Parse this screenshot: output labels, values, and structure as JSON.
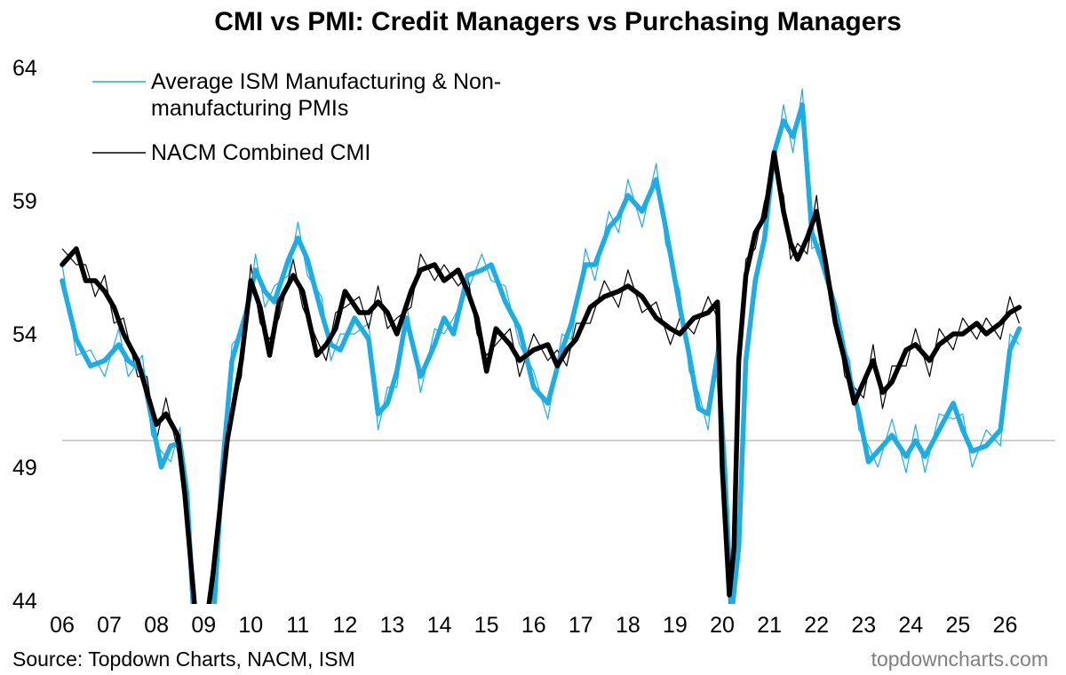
{
  "chart_data": {
    "type": "line",
    "title": "CMI vs PMI: Credit Managers vs Purchasing Managers",
    "xlabel": "",
    "ylabel": "",
    "x_tick_labels": [
      "06",
      "07",
      "08",
      "09",
      "10",
      "11",
      "12",
      "13",
      "14",
      "15",
      "16",
      "17",
      "18",
      "19",
      "20",
      "21",
      "22",
      "23",
      "24",
      "25",
      "26"
    ],
    "y_ticks": [
      44,
      49,
      54,
      59,
      64
    ],
    "ylim": [
      44,
      64
    ],
    "xlim": [
      2006.0,
      2026.5
    ],
    "reference_line": 50,
    "grid": false,
    "legend_position": "top-left",
    "source": "Source: Topdown Charts, NACM, ISM",
    "watermark": "topdowncharts.com",
    "series": [
      {
        "name": "Average ISM Manufacturing & Non-manufacturing PMIs",
        "color": "#1CADE4",
        "x": [
          2006.0,
          2006.3,
          2006.6,
          2006.9,
          2007.2,
          2007.4,
          2007.7,
          2007.9,
          2008.1,
          2008.3,
          2008.5,
          2008.65,
          2008.8,
          2008.9,
          2009.2,
          2009.4,
          2009.6,
          2009.9,
          2010.1,
          2010.3,
          2010.5,
          2010.8,
          2011.0,
          2011.2,
          2011.5,
          2011.7,
          2011.9,
          2012.2,
          2012.5,
          2012.7,
          2012.9,
          2013.1,
          2013.3,
          2013.6,
          2013.9,
          2014.1,
          2014.3,
          2014.6,
          2014.9,
          2015.1,
          2015.4,
          2015.7,
          2016.0,
          2016.3,
          2016.6,
          2016.8,
          2017.1,
          2017.3,
          2017.6,
          2017.8,
          2018.0,
          2018.3,
          2018.6,
          2018.8,
          2019.1,
          2019.3,
          2019.5,
          2019.7,
          2019.9,
          2020.05,
          2020.2,
          2020.35,
          2020.5,
          2020.7,
          2020.9,
          2021.1,
          2021.3,
          2021.5,
          2021.7,
          2021.9,
          2022.1,
          2022.4,
          2022.7,
          2022.9,
          2023.1,
          2023.3,
          2023.6,
          2023.9,
          2024.1,
          2024.3,
          2024.6,
          2024.9,
          2025.1,
          2025.3,
          2025.6,
          2025.9,
          2026.1,
          2026.3
        ],
        "y": [
          56.0,
          53.8,
          52.8,
          53.0,
          53.6,
          53.0,
          52.6,
          50.8,
          49.0,
          49.8,
          49.9,
          48.0,
          43.0,
          41.0,
          43.0,
          49.0,
          53.0,
          54.8,
          56.4,
          55.6,
          55.2,
          56.8,
          57.6,
          56.8,
          54.8,
          53.6,
          53.4,
          54.6,
          53.8,
          51.0,
          51.4,
          52.6,
          54.6,
          52.4,
          53.6,
          54.6,
          54.0,
          56.2,
          56.4,
          56.6,
          55.2,
          54.2,
          52.0,
          51.4,
          53.4,
          54.4,
          56.6,
          56.6,
          58.0,
          58.4,
          59.2,
          58.6,
          59.8,
          58.0,
          55.0,
          53.2,
          51.2,
          51.0,
          53.2,
          49.0,
          43.5,
          46.0,
          53.0,
          56.0,
          57.6,
          60.8,
          62.0,
          61.4,
          62.6,
          57.8,
          56.8,
          55.0,
          52.4,
          51.0,
          49.2,
          49.6,
          50.2,
          49.4,
          50.0,
          49.4,
          50.4,
          51.4,
          50.4,
          49.6,
          49.8,
          50.4,
          53.4,
          54.2
        ]
      },
      {
        "name": "NACM Combined CMI",
        "color": "#000000",
        "x": [
          2006.0,
          2006.3,
          2006.5,
          2006.7,
          2006.9,
          2007.1,
          2007.3,
          2007.6,
          2007.8,
          2008.0,
          2008.2,
          2008.45,
          2008.6,
          2008.8,
          2008.9,
          2009.2,
          2009.5,
          2009.8,
          2010.0,
          2010.2,
          2010.4,
          2010.6,
          2010.9,
          2011.1,
          2011.4,
          2011.6,
          2011.8,
          2012.0,
          2012.3,
          2012.5,
          2012.7,
          2012.9,
          2013.1,
          2013.4,
          2013.6,
          2013.9,
          2014.1,
          2014.4,
          2014.6,
          2014.8,
          2015.0,
          2015.2,
          2015.5,
          2015.7,
          2016.0,
          2016.3,
          2016.5,
          2016.7,
          2016.9,
          2017.2,
          2017.5,
          2017.8,
          2018.0,
          2018.3,
          2018.6,
          2018.9,
          2019.1,
          2019.4,
          2019.7,
          2019.9,
          2020.0,
          2020.15,
          2020.25,
          2020.35,
          2020.5,
          2020.7,
          2020.9,
          2021.1,
          2021.3,
          2021.45,
          2021.6,
          2021.8,
          2022.0,
          2022.2,
          2022.4,
          2022.6,
          2022.8,
          2023.0,
          2023.2,
          2023.4,
          2023.6,
          2023.9,
          2024.1,
          2024.4,
          2024.6,
          2024.9,
          2025.1,
          2025.4,
          2025.6,
          2025.9,
          2026.1,
          2026.3
        ],
        "y": [
          56.6,
          57.2,
          56.0,
          56.0,
          55.6,
          55.0,
          54.0,
          53.0,
          51.8,
          50.6,
          51.0,
          50.2,
          48.0,
          44.0,
          41.0,
          45.0,
          50.0,
          53.0,
          56.0,
          55.0,
          53.2,
          55.2,
          56.2,
          55.6,
          53.2,
          53.6,
          54.2,
          55.6,
          54.8,
          54.8,
          55.2,
          54.8,
          54.0,
          55.6,
          56.4,
          56.6,
          56.0,
          56.4,
          55.6,
          54.6,
          52.6,
          54.2,
          53.6,
          53.0,
          53.4,
          53.6,
          52.8,
          53.4,
          53.8,
          55.0,
          55.4,
          55.6,
          55.8,
          55.4,
          54.6,
          54.2,
          54.0,
          54.6,
          54.8,
          55.2,
          49.0,
          44.2,
          46.0,
          53.0,
          56.2,
          57.8,
          58.4,
          60.8,
          58.6,
          57.4,
          56.8,
          57.6,
          58.6,
          56.6,
          54.4,
          53.0,
          51.4,
          52.2,
          53.0,
          51.8,
          52.2,
          53.4,
          53.6,
          53.0,
          53.6,
          54.0,
          54.0,
          54.4,
          54.0,
          54.4,
          54.8,
          55.0
        ]
      }
    ]
  }
}
